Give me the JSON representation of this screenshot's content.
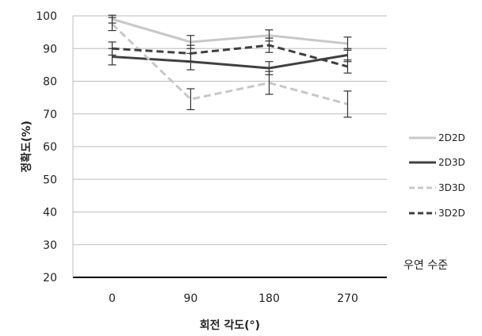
{
  "chart_data": {
    "type": "line",
    "xlabel": "회전 각도(°)",
    "ylabel": "정확도(%)",
    "categories": [
      "0",
      "90",
      "180",
      "270"
    ],
    "ylim": [
      20,
      100
    ],
    "yticks": [
      20,
      30,
      40,
      50,
      60,
      70,
      80,
      90,
      100
    ],
    "grid": true,
    "legend_position": "right",
    "annotation": "우연 수준",
    "chance_level": 20,
    "series": [
      {
        "name": "2D2D",
        "values": [
          99,
          92,
          94,
          91.5
        ],
        "errors": [
          1.2,
          2,
          1.7,
          2
        ],
        "color": "#c8c8c8",
        "dash": "solid"
      },
      {
        "name": "2D3D",
        "values": [
          87.5,
          86,
          84,
          88
        ],
        "errors": [
          2.5,
          2.5,
          2,
          2
        ],
        "color": "#404040",
        "dash": "solid"
      },
      {
        "name": "3D3D",
        "values": [
          97.5,
          74.5,
          79.5,
          73
        ],
        "errors": [
          2,
          3.2,
          3.5,
          4
        ],
        "color": "#c8c8c8",
        "dash": "dashed"
      },
      {
        "name": "3D2D",
        "values": [
          90,
          88.5,
          91,
          84.5
        ],
        "errors": [
          2,
          2.5,
          2.2,
          2
        ],
        "color": "#404040",
        "dash": "dashed"
      }
    ]
  }
}
